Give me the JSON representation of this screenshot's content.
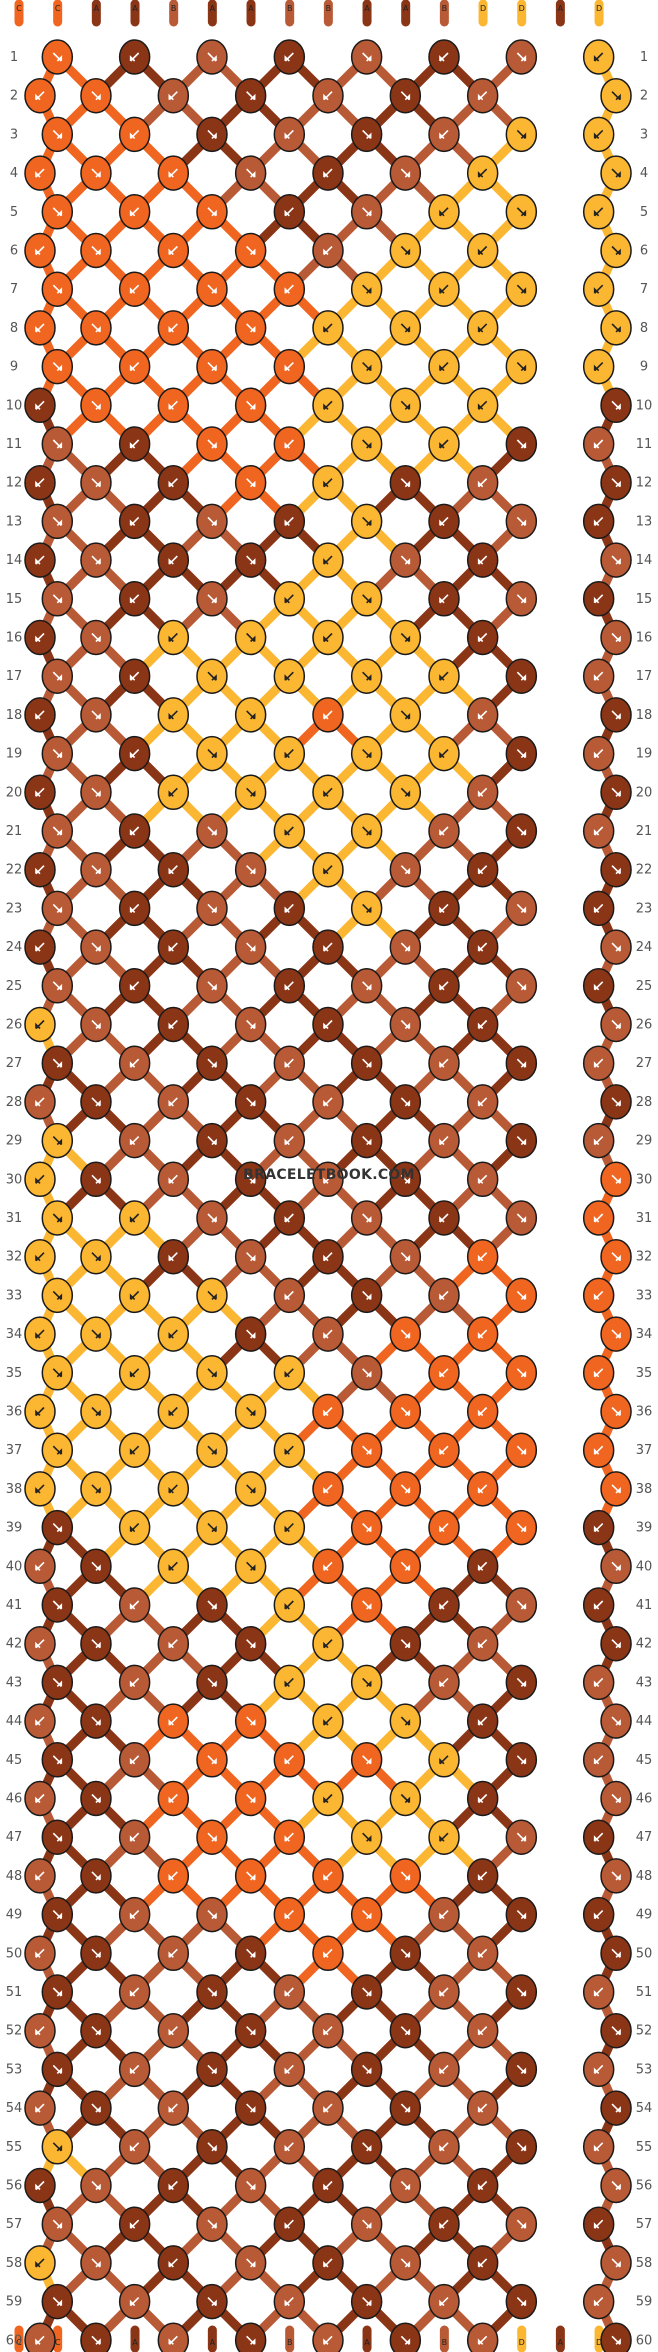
{
  "palette": {
    "A": "#8b3517",
    "B": "#b95a36",
    "C": "#f06520",
    "D": "#fbb632"
  },
  "strings_top": [
    "C",
    "C",
    "A",
    "A",
    "B",
    "A",
    "A",
    "B",
    "B",
    "A",
    "A",
    "B",
    "D",
    "D",
    "A",
    "D"
  ],
  "strings_bottom": [
    "C",
    "C",
    "A",
    "A",
    "B",
    "A",
    "A",
    "B",
    "B",
    "A",
    "A",
    "B",
    "D",
    "D",
    "A",
    "D"
  ],
  "row_count": 60,
  "knot_rows": [
    "CABABABD",
    "CCBABABD",
    "CCABABDD",
    "CCCBABDD",
    "CCCABDDD",
    "CCCCBDDD",
    "CCCCDDDD",
    "CCCCDDDD",
    "CCCCDDDD",
    "ACCCDDDA",
    "BACCDDAB",
    "ABACDABA",
    "BABADABA",
    "ABAADBAB",
    "BABDDABA",
    "ABDDDDAB",
    "BADDDDAB",
    "ABDDCDBA",
    "BADDDDAB",
    "ABDDDDBA",
    "BABDDBAB",
    "ABABDBAA",
    "BABADABA",
    "ABABABAB",
    "BABABABA",
    "DBABABAB",
    "ABABABAB",
    "BABABABA",
    "DBABABAB",
    "DABABABC",
    "DDBABABC",
    "DDABABCC",
    "DDDBABCC",
    "DDDABCCC",
    "DDDDBCCC",
    "DDDDCCCC",
    "DDDDCCCC",
    "DDDDCCCC",
    "ADDDCCCA",
    "BADDCCAB",
    "ABADCABA",
    "BABADABA",
    "ABADDBAB",
    "BACCDDAB",
    "ABCCCDAB",
    "BACCDDAB",
    "ABCCDDBA",
    "BACCCCAB",
    "ABBCCBAA",
    "BABACABA",
    "ABABABAB",
    "BABABABA",
    "ABABABAB",
    "BABABABA",
    "DBABABAB",
    "ABABABAB",
    "BABABABA",
    "DBABABAB",
    "ABABABAB",
    "BABABABA"
  ],
  "watermark": "BRACELETBOOK.COM"
}
